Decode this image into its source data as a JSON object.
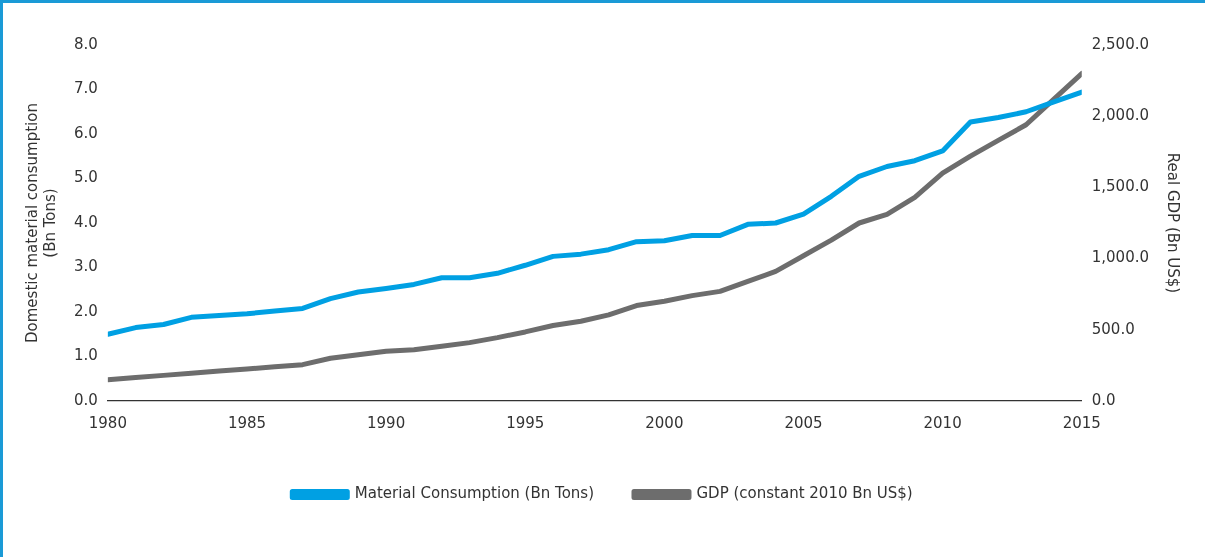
{
  "chart_data": {
    "type": "line",
    "ylabel": "Domestic material consumption\n(Bn Tons)",
    "y2label": "Real GDP (Bn US$)",
    "x": [
      1980,
      1981,
      1982,
      1983,
      1984,
      1985,
      1986,
      1987,
      1988,
      1989,
      1990,
      1991,
      1992,
      1993,
      1994,
      1995,
      1996,
      1997,
      1998,
      1999,
      2000,
      2001,
      2002,
      2003,
      2004,
      2005,
      2006,
      2007,
      2008,
      2009,
      2010,
      2011,
      2012,
      2013,
      2014,
      2015
    ],
    "xlim": [
      1980,
      2015
    ],
    "xticks": [
      1980,
      1985,
      1990,
      1995,
      2000,
      2005,
      2010,
      2015
    ],
    "ylim": [
      0,
      8
    ],
    "yticks": [
      {
        "value": 0,
        "label": "0.0"
      },
      {
        "value": 1,
        "label": "1.0"
      },
      {
        "value": 2,
        "label": "2.0"
      },
      {
        "value": 3,
        "label": "3.0"
      },
      {
        "value": 4,
        "label": "4.0"
      },
      {
        "value": 5,
        "label": "5.0"
      },
      {
        "value": 6,
        "label": "6.0"
      },
      {
        "value": 7,
        "label": "7.0"
      },
      {
        "value": 8,
        "label": "8.0"
      }
    ],
    "y2lim": [
      0,
      2500
    ],
    "y2ticks": [
      {
        "value": 0,
        "label": "0.0"
      },
      {
        "value": 500,
        "label": "500.0"
      },
      {
        "value": 1000,
        "label": "1,000.0"
      },
      {
        "value": 1500,
        "label": "1,500.0"
      },
      {
        "value": 2000,
        "label": "2,000.0"
      },
      {
        "value": 2500,
        "label": "2,500.0"
      }
    ],
    "grid": false,
    "legend": "bottom",
    "series": [
      {
        "name": "Material Consumption (Bn Tons)",
        "color": "#00a0e3",
        "values": [
          1.5,
          1.65,
          1.72,
          1.88,
          1.92,
          1.96,
          2.02,
          2.08,
          2.3,
          2.45,
          2.53,
          2.62,
          2.77,
          2.77,
          2.87,
          3.05,
          3.25,
          3.3,
          3.4,
          3.58,
          3.6,
          3.72,
          3.72,
          3.97,
          4.0,
          4.2,
          4.6,
          5.05,
          5.27,
          5.4,
          5.62,
          6.27,
          6.37,
          6.5,
          6.72,
          6.94
        ]
      },
      {
        "name": "GDP (constant 2010 Bn US$)",
        "color": "#6d6d6d",
        "axis": "y2",
        "values": [
          150,
          165,
          180,
          195,
          210,
          225,
          240,
          255,
          300,
          325,
          350,
          360,
          385,
          410,
          445,
          485,
          530,
          560,
          605,
          670,
          700,
          740,
          770,
          840,
          910,
          1020,
          1130,
          1250,
          1310,
          1430,
          1600,
          1720,
          1830,
          1940,
          2120,
          2300
        ]
      }
    ]
  }
}
